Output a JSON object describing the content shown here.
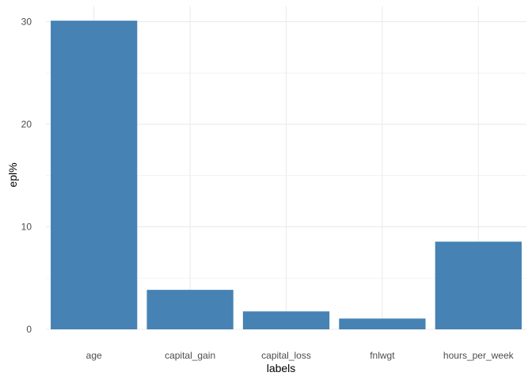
{
  "chart_data": {
    "type": "bar",
    "categories": [
      "age",
      "capital_gain",
      "capital_loss",
      "fnlwgt",
      "hours_per_week"
    ],
    "values": [
      30.1,
      3.85,
      1.75,
      1.05,
      8.55
    ],
    "xlabel": "labels",
    "ylabel": "epl%",
    "ylim": [
      0,
      31.5
    ],
    "yticks": [
      0,
      10,
      20,
      30
    ],
    "grid": true,
    "bar_color": "#4682B4",
    "grid_color": "#EBEBEB"
  }
}
